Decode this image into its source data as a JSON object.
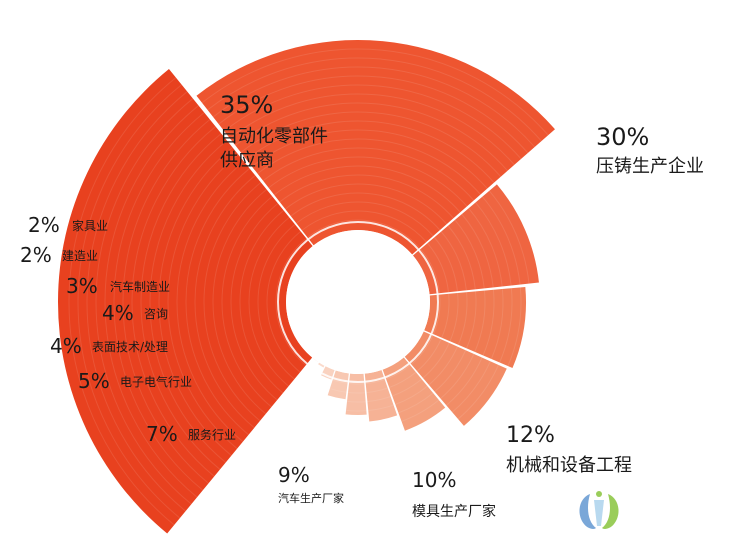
{
  "chart_data": {
    "type": "pie",
    "subtype": "rose-donut",
    "title": "",
    "slices": [
      {
        "label": "自动化零部件\n供应商",
        "value": 35,
        "pct_text": "35%",
        "color": "#e8411f"
      },
      {
        "label": "压铸生产企业",
        "value": 30,
        "pct_text": "30%",
        "color": "#ee5530"
      },
      {
        "label": "机械和设备工程",
        "value": 12,
        "pct_text": "12%",
        "color": "#ef6541"
      },
      {
        "label": "模具生产厂家",
        "value": 10,
        "pct_text": "10%",
        "color": "#f07a52"
      },
      {
        "label": "汽车生产厂家",
        "value": 9,
        "pct_text": "9%",
        "color": "#f28c66"
      },
      {
        "label": "服务行业",
        "value": 7,
        "pct_text": "7%",
        "color": "#f4a07d"
      },
      {
        "label": "电子电气行业",
        "value": 5,
        "pct_text": "5%",
        "color": "#f6b295"
      },
      {
        "label": "表面技术/处理",
        "value": 4,
        "pct_text": "4%",
        "color": "#f7bea5"
      },
      {
        "label": "咨询",
        "value": 4,
        "pct_text": "4%",
        "color": "#f8c8b2"
      },
      {
        "label": "汽车制造业",
        "value": 3,
        "pct_text": "3%",
        "color": "#f9d2c0"
      },
      {
        "label": "建造业",
        "value": 2,
        "pct_text": "2%",
        "color": "#fadacb"
      },
      {
        "label": "家具业",
        "value": 2,
        "pct_text": "2%",
        "color": "#fbe2d6"
      }
    ],
    "legend": "none"
  },
  "logo": {
    "name": "watermark-logo",
    "colors": [
      "#7aa7d8",
      "#9acd5a"
    ]
  }
}
